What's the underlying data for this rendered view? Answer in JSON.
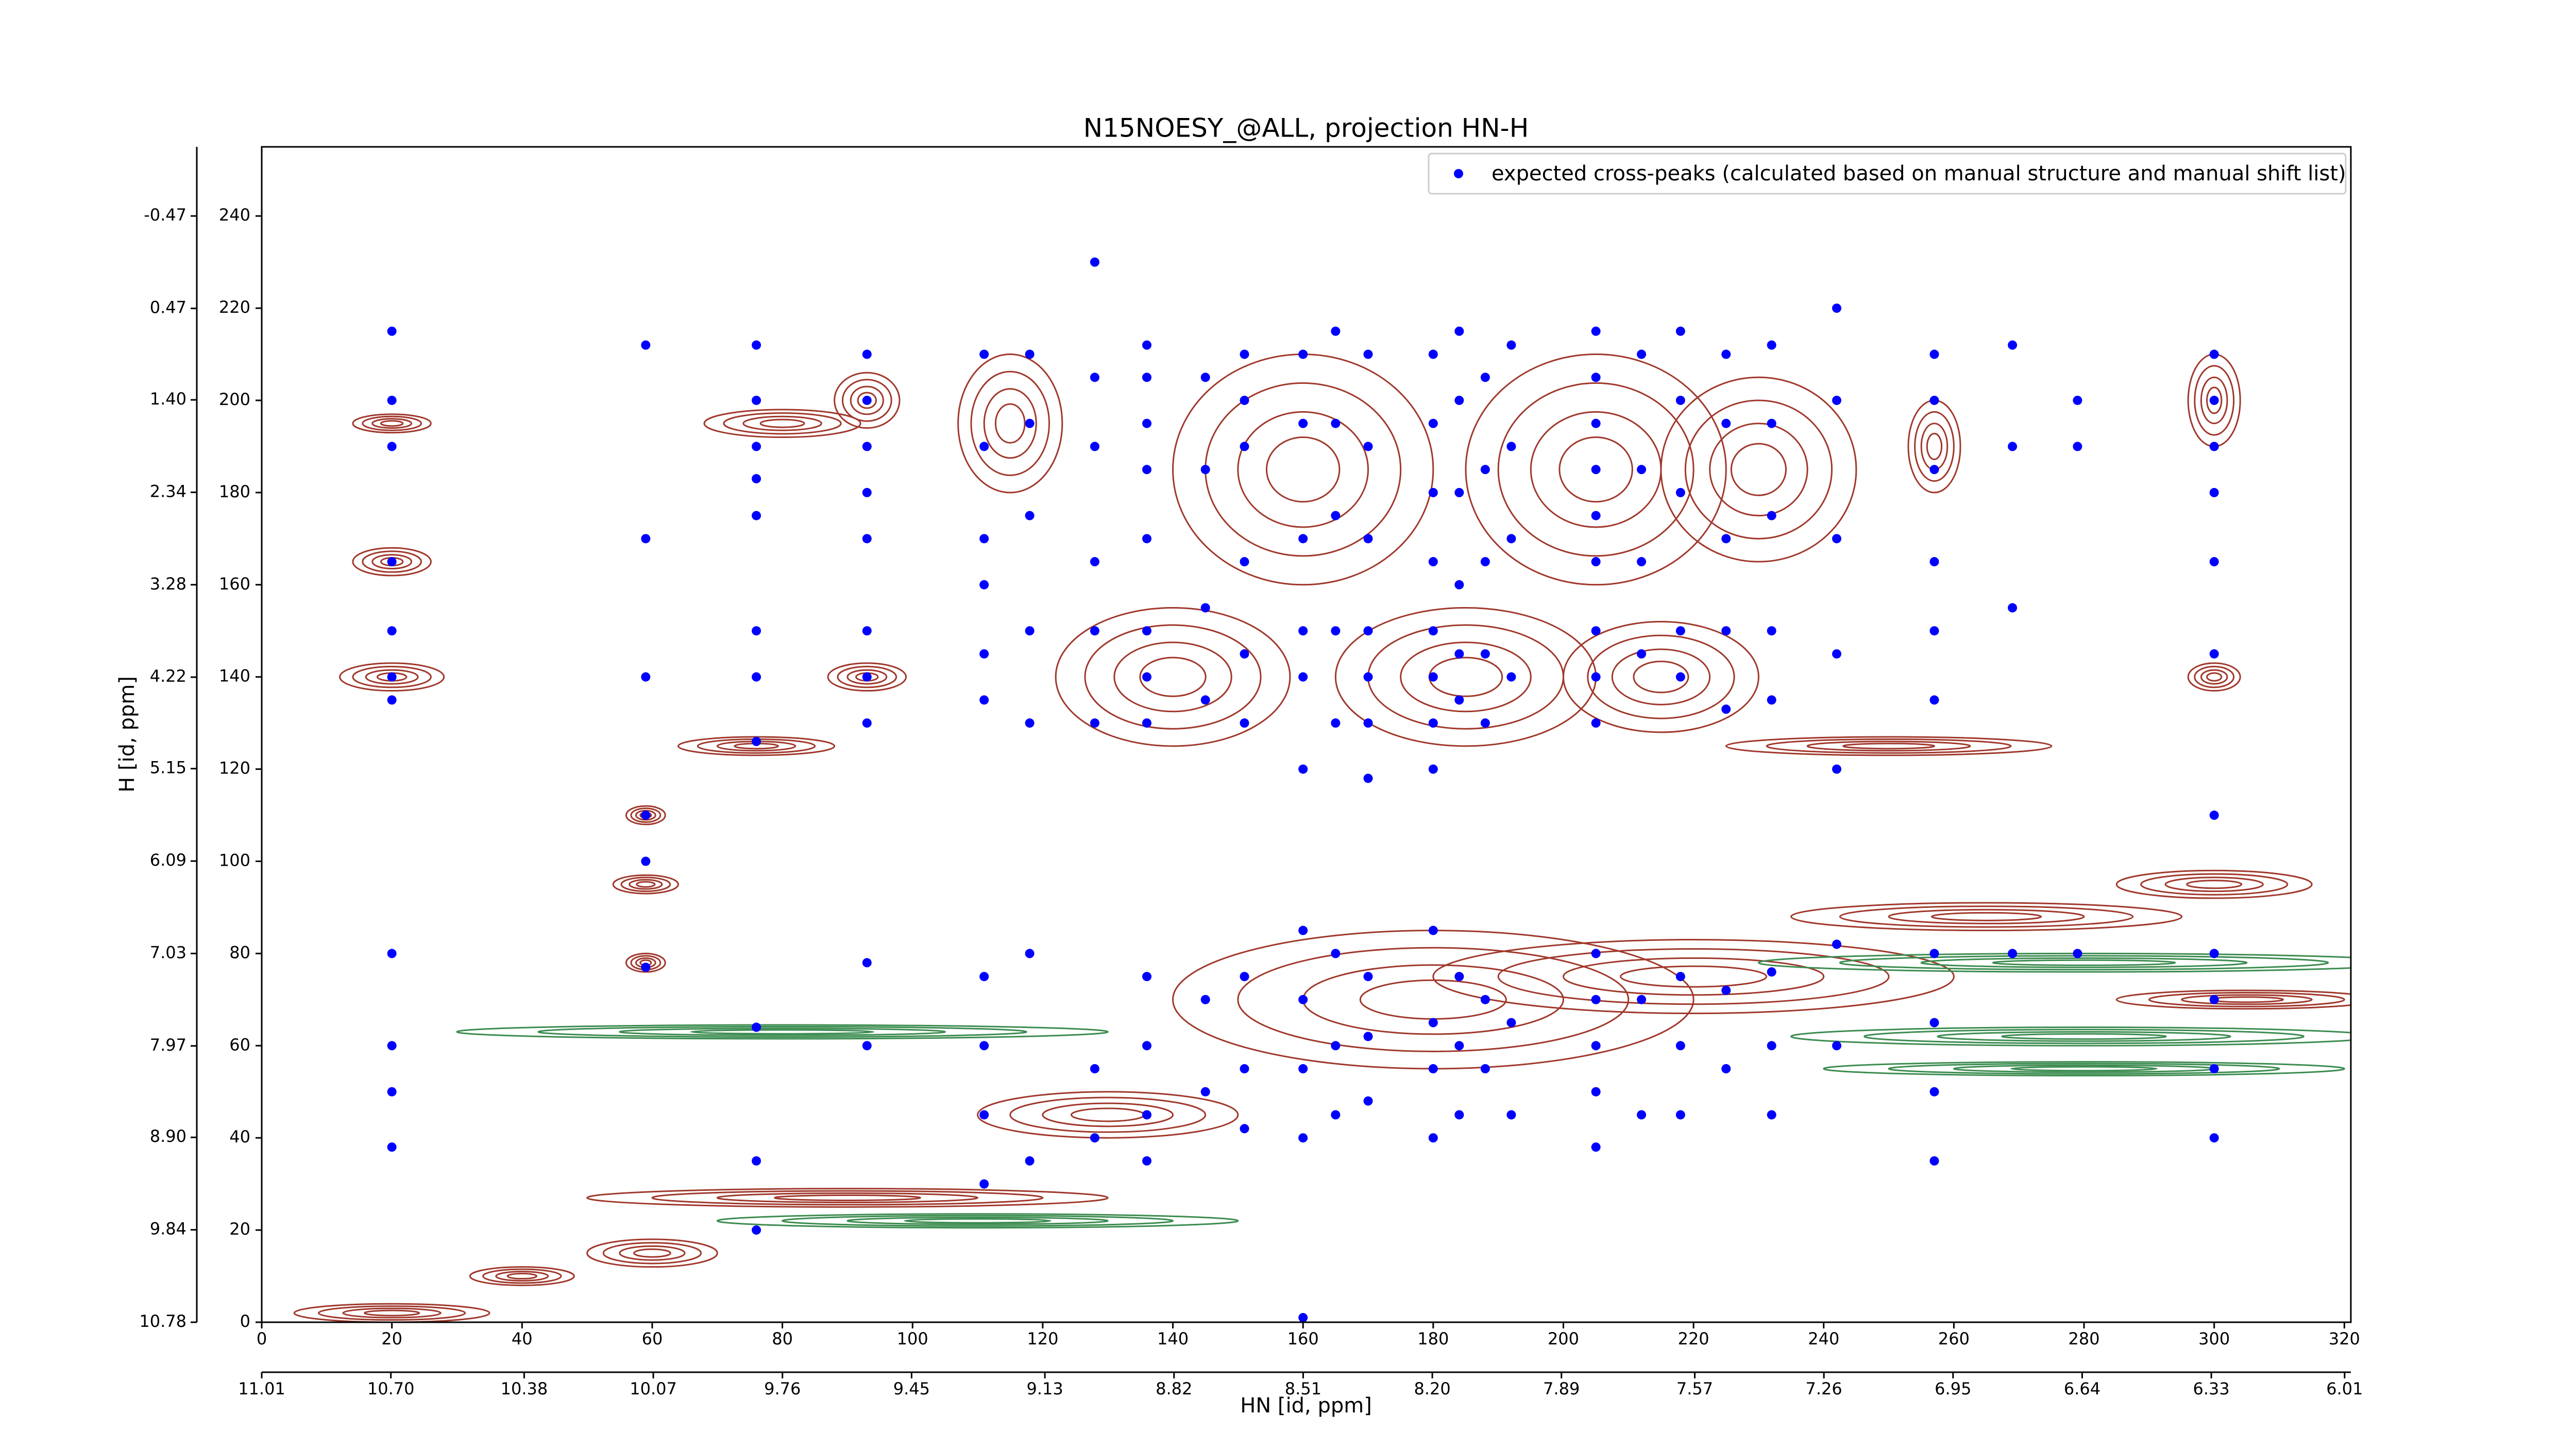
{
  "chart_data": {
    "type": "scatter",
    "title": "N15NOESY_@ALL, projection HN-H",
    "x_label": "HN [id, ppm]",
    "y_label": "H [id, ppm]",
    "xlim": [
      0,
      321
    ],
    "ylim": [
      0,
      255
    ],
    "xticks": [
      0,
      20,
      40,
      60,
      80,
      100,
      120,
      140,
      160,
      180,
      200,
      220,
      240,
      260,
      280,
      300,
      320
    ],
    "yticks": [
      0,
      20,
      40,
      60,
      80,
      100,
      120,
      140,
      160,
      180,
      200,
      220,
      240
    ],
    "x2lim": [
      11.01,
      5.995
    ],
    "x2ticks": [
      11.01,
      {
        "value": 10.7,
        "label": "10.70"
      },
      10.38,
      10.07,
      9.76,
      9.45,
      9.13,
      8.82,
      8.51,
      {
        "value": 8.2,
        "label": "8.20"
      },
      7.89,
      7.57,
      7.26,
      6.95,
      6.64,
      6.33,
      6.01
    ],
    "y2lim": [
      10.78,
      -1.173
    ],
    "y2ticks": [
      10.78,
      9.84,
      {
        "value": 8.9,
        "label": "8.90"
      },
      7.97,
      7.03,
      6.09,
      5.15,
      4.22,
      3.28,
      2.34,
      {
        "value": 1.4,
        "label": "1.40"
      },
      0.47,
      -0.47
    ],
    "legend": "upper right",
    "contour_color": "#a0382c",
    "negative_contour_color": "#3c8c50",
    "peaks": [
      [
        20,
        140,
        8,
        3
      ],
      [
        20,
        165,
        6,
        3
      ],
      [
        20,
        195,
        6,
        2
      ],
      [
        59,
        110,
        3,
        2
      ],
      [
        59,
        95,
        5,
        2
      ],
      [
        59,
        78,
        3,
        2
      ],
      [
        76,
        125,
        12,
        2
      ],
      [
        93,
        140,
        6,
        3
      ],
      [
        93,
        200,
        5,
        6
      ],
      [
        80,
        195,
        12,
        3
      ],
      [
        115,
        195,
        8,
        15
      ],
      [
        160,
        185,
        20,
        25
      ],
      [
        205,
        185,
        20,
        25
      ],
      [
        230,
        185,
        15,
        20
      ],
      [
        140,
        140,
        18,
        15
      ],
      [
        185,
        140,
        20,
        15
      ],
      [
        215,
        140,
        15,
        12
      ],
      [
        250,
        125,
        25,
        2
      ],
      [
        180,
        70,
        40,
        15
      ],
      [
        220,
        75,
        40,
        8
      ],
      [
        130,
        45,
        20,
        5
      ],
      [
        90,
        27,
        40,
        2
      ],
      [
        60,
        15,
        10,
        3
      ],
      [
        40,
        10,
        8,
        2
      ],
      [
        20,
        2,
        15,
        2
      ],
      [
        300,
        95,
        15,
        3
      ],
      [
        300,
        140,
        4,
        3
      ],
      [
        300,
        200,
        4,
        10
      ],
      [
        257,
        190,
        4,
        10
      ],
      [
        265,
        88,
        30,
        3
      ],
      [
        305,
        70,
        20,
        2
      ]
    ],
    "negative_peaks": [
      [
        280,
        78,
        50,
        2
      ],
      [
        280,
        62,
        45,
        2
      ],
      [
        80,
        63,
        50,
        1.5
      ],
      [
        110,
        22,
        40,
        1.5
      ],
      [
        280,
        55,
        40,
        1.5
      ]
    ],
    "series": [
      {
        "name": "expected cross-peaks (calculated based on manual structure and manual shift list)",
        "color": "#0000ff",
        "x": [
          20,
          20,
          20,
          20,
          20,
          20,
          20,
          20,
          20,
          20,
          20,
          59,
          59,
          59,
          59,
          59,
          59,
          76,
          76,
          76,
          76,
          76,
          76,
          76,
          76,
          76,
          76,
          76,
          93,
          93,
          93,
          93,
          93,
          93,
          93,
          93,
          93,
          93,
          111,
          111,
          111,
          111,
          111,
          111,
          111,
          111,
          111,
          111,
          118,
          118,
          118,
          118,
          118,
          118,
          118,
          128,
          128,
          128,
          128,
          128,
          128,
          128,
          128,
          136,
          136,
          136,
          136,
          136,
          136,
          136,
          136,
          136,
          136,
          136,
          136,
          145,
          145,
          145,
          145,
          145,
          145,
          151,
          151,
          151,
          151,
          151,
          151,
          151,
          151,
          151,
          160,
          160,
          160,
          160,
          160,
          160,
          160,
          160,
          160,
          160,
          160,
          165,
          165,
          165,
          165,
          165,
          165,
          165,
          165,
          170,
          170,
          170,
          170,
          170,
          170,
          170,
          170,
          170,
          170,
          180,
          180,
          180,
          180,
          180,
          180,
          180,
          180,
          180,
          180,
          180,
          180,
          184,
          184,
          184,
          184,
          184,
          184,
          184,
          184,
          184,
          188,
          188,
          188,
          188,
          188,
          188,
          188,
          192,
          192,
          192,
          192,
          192,
          192,
          205,
          205,
          205,
          205,
          205,
          205,
          205,
          205,
          205,
          205,
          205,
          205,
          205,
          205,
          212,
          212,
          212,
          212,
          212,
          212,
          218,
          218,
          218,
          218,
          218,
          218,
          218,
          218,
          225,
          225,
          225,
          225,
          225,
          225,
          225,
          232,
          232,
          232,
          232,
          232,
          232,
          232,
          232,
          242,
          242,
          242,
          242,
          242,
          242,
          242,
          257,
          257,
          257,
          257,
          257,
          257,
          257,
          257,
          257,
          257,
          269,
          269,
          269,
          269,
          279,
          279,
          279,
          300,
          300,
          300,
          300,
          300,
          300,
          300,
          300,
          300,
          300,
          300
        ],
        "values": [
          215,
          200,
          190,
          165,
          150,
          140,
          135,
          80,
          60,
          50,
          38,
          212,
          170,
          140,
          110,
          100,
          77,
          212,
          200,
          190,
          183,
          175,
          150,
          140,
          126,
          64,
          35,
          20,
          210,
          200,
          190,
          180,
          170,
          150,
          140,
          130,
          78,
          60,
          210,
          190,
          170,
          160,
          145,
          135,
          75,
          60,
          45,
          30,
          210,
          195,
          175,
          150,
          130,
          80,
          35,
          230,
          205,
          190,
          165,
          150,
          130,
          55,
          40,
          212,
          205,
          195,
          185,
          170,
          150,
          140,
          130,
          75,
          60,
          45,
          35,
          205,
          185,
          155,
          135,
          70,
          50,
          210,
          200,
          190,
          165,
          145,
          130,
          75,
          55,
          42,
          210,
          195,
          170,
          150,
          140,
          120,
          85,
          70,
          55,
          40,
          1,
          215,
          195,
          175,
          150,
          130,
          80,
          60,
          45,
          210,
          190,
          170,
          150,
          140,
          130,
          118,
          75,
          62,
          48,
          210,
          195,
          180,
          165,
          150,
          140,
          130,
          120,
          85,
          65,
          55,
          40,
          215,
          200,
          180,
          160,
          145,
          135,
          75,
          60,
          45,
          205,
          185,
          165,
          145,
          130,
          70,
          55,
          212,
          190,
          170,
          140,
          65,
          45,
          215,
          205,
          195,
          185,
          175,
          165,
          150,
          140,
          130,
          80,
          70,
          60,
          50,
          38,
          210,
          185,
          165,
          145,
          70,
          45,
          215,
          200,
          180,
          150,
          140,
          75,
          60,
          45,
          210,
          195,
          170,
          150,
          133,
          72,
          55,
          212,
          195,
          175,
          150,
          135,
          76,
          60,
          45,
          220,
          200,
          170,
          145,
          120,
          82,
          60,
          210,
          200,
          185,
          165,
          150,
          135,
          80,
          65,
          50,
          35,
          212,
          190,
          155,
          80,
          200,
          190,
          80,
          210,
          200,
          190,
          180,
          165,
          145,
          110,
          80,
          70,
          55,
          40
        ]
      }
    ]
  }
}
